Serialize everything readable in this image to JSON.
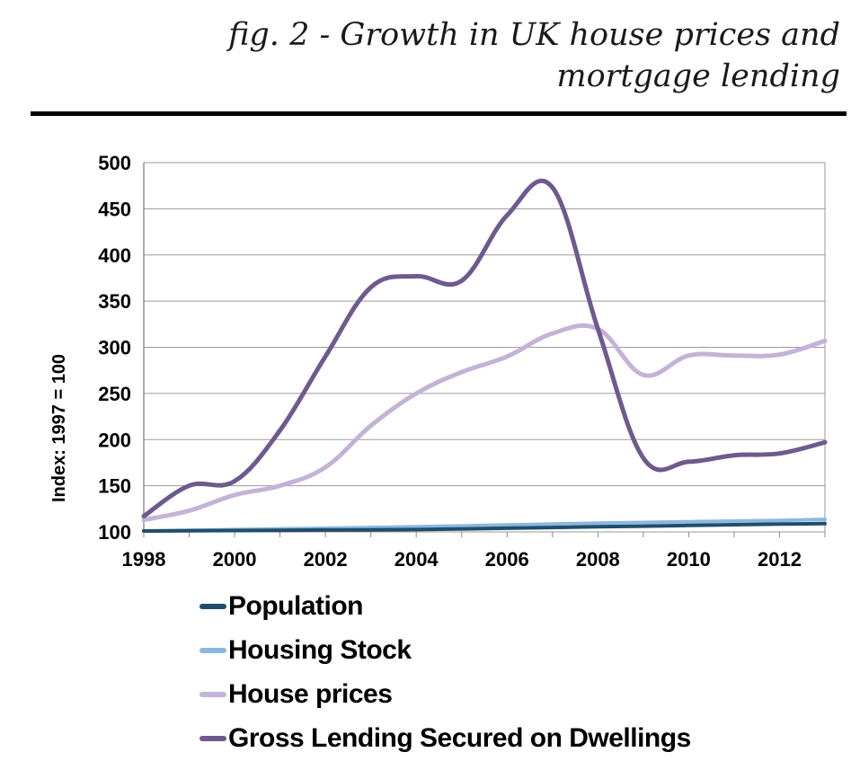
{
  "figure_title": "fig. 2 - Growth in UK house prices and mortgage lending",
  "chart_data": {
    "type": "line",
    "title": "fig. 2 - Growth in UK house prices and mortgage lending",
    "xlabel": "",
    "ylabel": "Index:  1997 = 100",
    "xlim": [
      1998,
      2013
    ],
    "ylim": [
      100,
      500
    ],
    "yticks": [
      100,
      150,
      200,
      250,
      300,
      350,
      400,
      450,
      500
    ],
    "xticks": [
      1998,
      2000,
      2002,
      2004,
      2006,
      2008,
      2010,
      2012
    ],
    "grid": true,
    "legend_position": "bottom",
    "series": [
      {
        "name": "Population",
        "color": "#1f4e6b",
        "x": [
          1998,
          2000,
          2002,
          2004,
          2006,
          2008,
          2010,
          2012,
          2013
        ],
        "y": [
          101,
          101.5,
          102,
          102.5,
          104,
          105.5,
          107,
          108.5,
          109
        ]
      },
      {
        "name": "Housing Stock",
        "color": "#8cb8df",
        "x": [
          1998,
          2000,
          2002,
          2004,
          2006,
          2008,
          2010,
          2012,
          2013
        ],
        "y": [
          101,
          102.5,
          104,
          105.5,
          107.5,
          109.5,
          111,
          112.5,
          113.5
        ]
      },
      {
        "name": "House prices",
        "color": "#c4b3d6",
        "x": [
          1998,
          1999,
          2000,
          2001,
          2002,
          2003,
          2004,
          2005,
          2006,
          2007,
          2008,
          2009,
          2010,
          2011,
          2012,
          2013
        ],
        "y": [
          113,
          123,
          140,
          150,
          170,
          215,
          250,
          273,
          290,
          315,
          320,
          270,
          291,
          291,
          292,
          307
        ]
      },
      {
        "name": "Gross Lending Secured on Dwellings",
        "color": "#6e5a8f",
        "x": [
          1998,
          1999,
          2000,
          2001,
          2002,
          2003,
          2004,
          2005,
          2006,
          2007,
          2008,
          2009,
          2010,
          2011,
          2012,
          2013
        ],
        "y": [
          117,
          150,
          155,
          210,
          290,
          365,
          377,
          372,
          443,
          473,
          320,
          180,
          176,
          183,
          185,
          197
        ]
      }
    ]
  }
}
